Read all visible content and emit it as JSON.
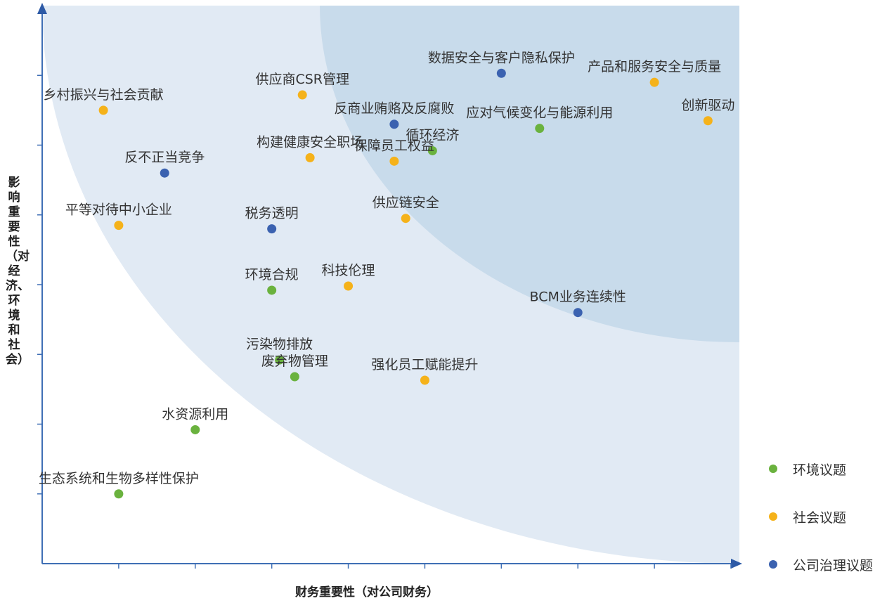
{
  "chart_data": {
    "type": "scatter",
    "xlabel": "财务重要性（对公司财务）",
    "ylabel": "影响重要性（对经济、环境和社会）",
    "xlim": [
      0,
      9
    ],
    "ylim": [
      0,
      8
    ],
    "grid": false,
    "legend_position": "bottom-right",
    "categories": [
      {
        "key": "env",
        "name": "环境议题",
        "color": "#6ab23e"
      },
      {
        "key": "soc",
        "name": "社会议题",
        "color": "#f5b21a"
      },
      {
        "key": "gov",
        "name": "公司治理议题",
        "color": "#3b62b0"
      }
    ],
    "points": [
      {
        "label": "数据安全与客户隐私保护",
        "x": 6.0,
        "y": 7.03,
        "cat": "gov"
      },
      {
        "label": "产品和服务安全与质量",
        "x": 8.0,
        "y": 6.9,
        "cat": "soc"
      },
      {
        "label": "乡村振兴与社会贡献",
        "x": 0.8,
        "y": 6.5,
        "cat": "soc"
      },
      {
        "label": "供应商CSR管理",
        "x": 3.4,
        "y": 6.72,
        "cat": "soc"
      },
      {
        "label": "创新驱动",
        "x": 8.7,
        "y": 6.35,
        "cat": "soc"
      },
      {
        "label": "反商业贿赂及反腐败",
        "x": 4.6,
        "y": 6.3,
        "cat": "gov"
      },
      {
        "label": "应对气候变化与能源利用",
        "x": 6.5,
        "y": 6.24,
        "cat": "env"
      },
      {
        "label": "循环经济",
        "x": 5.1,
        "y": 5.92,
        "cat": "env"
      },
      {
        "label": "构建健康安全职场",
        "x": 3.5,
        "y": 5.82,
        "cat": "soc"
      },
      {
        "label": "保障员工权益",
        "x": 4.6,
        "y": 5.77,
        "cat": "soc"
      },
      {
        "label": "反不正当竞争",
        "x": 1.6,
        "y": 5.6,
        "cat": "gov"
      },
      {
        "label": "平等对待中小企业",
        "x": 1.0,
        "y": 4.85,
        "cat": "soc"
      },
      {
        "label": "税务透明",
        "x": 3.0,
        "y": 4.8,
        "cat": "gov"
      },
      {
        "label": "供应链安全",
        "x": 4.75,
        "y": 4.95,
        "cat": "soc"
      },
      {
        "label": "环境合规",
        "x": 3.0,
        "y": 3.92,
        "cat": "env"
      },
      {
        "label": "科技伦理",
        "x": 4.0,
        "y": 3.98,
        "cat": "soc"
      },
      {
        "label": "BCM业务连续性",
        "x": 7.0,
        "y": 3.6,
        "cat": "gov"
      },
      {
        "label": "污染物排放",
        "x": 3.1,
        "y": 2.92,
        "cat": "env"
      },
      {
        "label": "废弃物管理",
        "x": 3.3,
        "y": 2.68,
        "cat": "env"
      },
      {
        "label": "强化员工赋能提升",
        "x": 5.0,
        "y": 2.63,
        "cat": "soc"
      },
      {
        "label": "水资源利用",
        "x": 2.0,
        "y": 1.92,
        "cat": "env"
      },
      {
        "label": "生态系统和生物多样性保护",
        "x": 1.0,
        "y": 1.0,
        "cat": "env"
      }
    ]
  }
}
